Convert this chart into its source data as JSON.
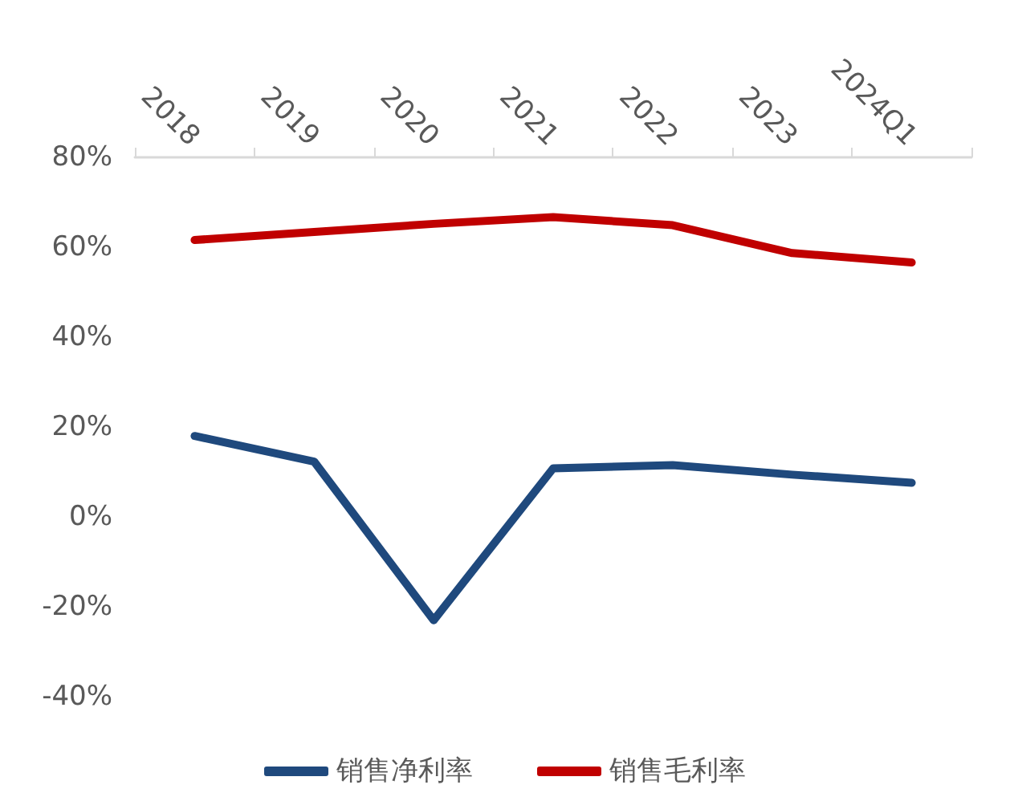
{
  "chart_data": {
    "type": "line",
    "categories": [
      "2018",
      "2019",
      "2020",
      "2021",
      "2022",
      "2023",
      "2024Q1"
    ],
    "series": [
      {
        "name": "销售净利率",
        "color": "#1f497d",
        "values": [
          18,
          12.3,
          -23,
          10.8,
          11.5,
          9.4,
          7.6
        ]
      },
      {
        "name": "销售毛利率",
        "color": "#c00000",
        "values": [
          61.6,
          63.4,
          65.2,
          66.7,
          64.9,
          58.7,
          56.6
        ]
      }
    ],
    "ylim": [
      -40,
      80
    ],
    "yticks": [
      {
        "value": -40,
        "label": "-40%"
      },
      {
        "value": -20,
        "label": "-20%"
      },
      {
        "value": 0,
        "label": "0%"
      },
      {
        "value": 20,
        "label": "20%"
      },
      {
        "value": 40,
        "label": "40%"
      },
      {
        "value": 60,
        "label": "60%"
      },
      {
        "value": 80,
        "label": "80%"
      }
    ],
    "grid": false,
    "legend": "bottom",
    "marker": "none",
    "line_style": "solid"
  }
}
